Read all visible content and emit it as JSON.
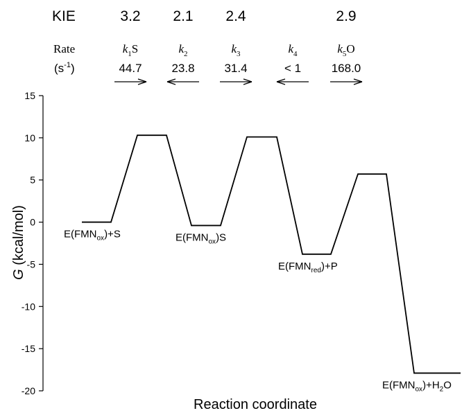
{
  "chart_data": {
    "type": "line",
    "xlabel": "Reaction coordinate",
    "ylabel_var": "G",
    "ylabel_unit": "(kcal/mol)",
    "ylim": [
      -20,
      15
    ],
    "yticks": [
      15,
      10,
      5,
      0,
      -5,
      -10,
      -15,
      -20
    ],
    "grid": false,
    "kie_label": "KIE",
    "rate_label": "Rate",
    "rate_unit_base": "(s",
    "rate_unit_exp": "-1",
    "rate_unit_close": ")",
    "steps": [
      {
        "k": "k",
        "sub": "1",
        "suffix": "S",
        "rate": "44.7",
        "kie": "3.2",
        "direction": "forward"
      },
      {
        "k": "k",
        "sub": "2",
        "suffix": "",
        "rate": "23.8",
        "kie": "2.1",
        "direction": "reverse"
      },
      {
        "k": "k",
        "sub": "3",
        "suffix": "",
        "rate": "31.4",
        "kie": "2.4",
        "direction": "forward"
      },
      {
        "k": "k",
        "sub": "4",
        "suffix": "",
        "rate": "< 1",
        "kie": "",
        "direction": "reverse"
      },
      {
        "k": "k",
        "sub": "5",
        "suffix": "O",
        "rate": "168.0",
        "kie": "2.9",
        "direction": "forward"
      }
    ],
    "levels": [
      {
        "kind": "state",
        "g": 0
      },
      {
        "kind": "ts",
        "g": 10.3
      },
      {
        "kind": "state",
        "g": -0.4
      },
      {
        "kind": "ts",
        "g": 10.1
      },
      {
        "kind": "state",
        "g": -3.8
      },
      {
        "kind": "ts",
        "g": 5.7
      },
      {
        "kind": "state",
        "g": -17.9
      }
    ],
    "state_labels": [
      {
        "pre": "E(FMN",
        "sub": "ox",
        "post": ")+S",
        "post_sub": "",
        "post2": ""
      },
      {
        "pre": "E(FMN",
        "sub": "ox",
        "post": ")S",
        "post_sub": "",
        "post2": ""
      },
      {
        "pre": "E(FMN",
        "sub": "red",
        "post": ")+P",
        "post_sub": "",
        "post2": ""
      },
      {
        "pre": "E(FMN",
        "sub": "ox",
        "post": ")+H",
        "post_sub": "2",
        "post2": "O"
      }
    ],
    "state_labels_tail_sub": [
      "",
      "",
      "",
      "2"
    ]
  }
}
